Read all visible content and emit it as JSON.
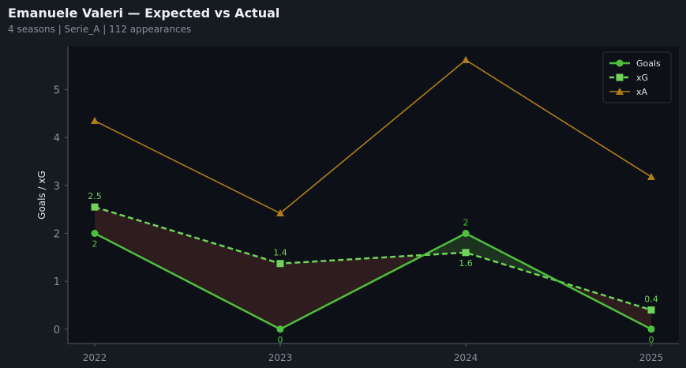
{
  "title": "Emanuele Valeri — Expected vs Actual",
  "subtitle": "4 seasons | Serie_A | 112 appearances",
  "chart_data": {
    "type": "line",
    "x": [
      "2022",
      "2023",
      "2024",
      "2025"
    ],
    "ylabel": "Goals / xG",
    "ylim": [
      -0.3,
      5.9
    ],
    "yticks": [
      0,
      1,
      2,
      3,
      4,
      5
    ],
    "grid": false,
    "legend": "bottom-right",
    "series": [
      {
        "name": "Goals",
        "values": [
          2,
          0,
          2,
          0
        ],
        "color": "#4fbf3f",
        "labels": [
          "2",
          "0",
          "2",
          "0"
        ]
      },
      {
        "name": "xG",
        "values": [
          2.55,
          1.37,
          1.6,
          0.4
        ],
        "color": "#6fd35a",
        "labels": [
          "2.5",
          "1.4",
          "1.6",
          "0.4"
        ]
      },
      {
        "name": "xA",
        "values": [
          4.35,
          2.42,
          5.62,
          3.18
        ],
        "color": "#b07d1a"
      }
    ],
    "fill_colors": {
      "under": "#2e1c1e",
      "over": "#1d3320"
    }
  }
}
